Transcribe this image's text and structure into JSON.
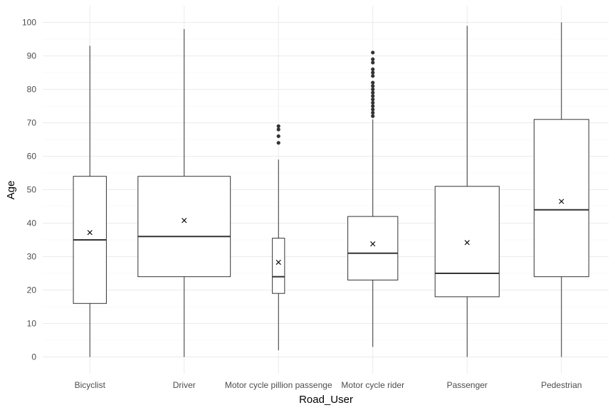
{
  "chart_data": {
    "type": "boxplot",
    "title": "",
    "xlabel": "Road_User",
    "ylabel": "Age",
    "ylim": [
      -5,
      105
    ],
    "y_ticks": [
      0,
      10,
      20,
      30,
      40,
      50,
      60,
      70,
      80,
      90,
      100
    ],
    "y_tick_labels": [
      "0",
      "10",
      "20",
      "30",
      "40",
      "50",
      "60",
      "70",
      "80",
      "90",
      "100"
    ],
    "grid": true,
    "legend": "none",
    "categories": [
      "Bicyclist",
      "Driver",
      "Motor cycle pillion passenger",
      "Motor cycle rider",
      "Passenger",
      "Pedestrian"
    ],
    "tick_labels": [
      "Bicyclist",
      "Driver",
      "Motor cycle pillion passenge",
      "Motor cycle rider",
      "Passenger",
      "Pedestrian"
    ],
    "boxes": [
      {
        "category": "Bicyclist",
        "whisker_low": 0,
        "q1": 16,
        "median": 35,
        "q3": 54,
        "whisker_high": 93,
        "mean": 37.2,
        "outliers": [],
        "width": 0.35
      },
      {
        "category": "Driver",
        "whisker_low": 0,
        "q1": 24,
        "median": 36,
        "q3": 54,
        "whisker_high": 98,
        "mean": 40.8,
        "outliers": [],
        "width": 0.98
      },
      {
        "category": "Motor cycle pillion passenger",
        "whisker_low": 2,
        "q1": 19,
        "median": 24,
        "q3": 35.5,
        "whisker_high": 59,
        "mean": 28.3,
        "outliers": [
          64,
          66,
          68,
          69
        ],
        "width": 0.13
      },
      {
        "category": "Motor cycle rider",
        "whisker_low": 3,
        "q1": 23,
        "median": 31,
        "q3": 42,
        "whisker_high": 71,
        "mean": 33.8,
        "outliers": [
          72,
          73,
          74,
          75,
          76,
          77,
          78,
          79,
          80,
          81,
          82,
          84,
          85,
          86,
          88,
          89,
          91
        ],
        "width": 0.53
      },
      {
        "category": "Passenger",
        "whisker_low": 0,
        "q1": 18,
        "median": 25,
        "q3": 51,
        "whisker_high": 99,
        "mean": 34.2,
        "outliers": [],
        "width": 0.68
      },
      {
        "category": "Pedestrian",
        "whisker_low": 0,
        "q1": 24,
        "median": 44,
        "q3": 71,
        "whisker_high": 100,
        "mean": 46.5,
        "outliers": [],
        "width": 0.58
      }
    ],
    "colors": {
      "box_stroke": "#333333",
      "box_fill": "#ffffff",
      "grid_major": "#ebebeb",
      "grid_minor": "#f4f4f4",
      "outlier": "#333333",
      "mean_marker": "#000000"
    }
  }
}
